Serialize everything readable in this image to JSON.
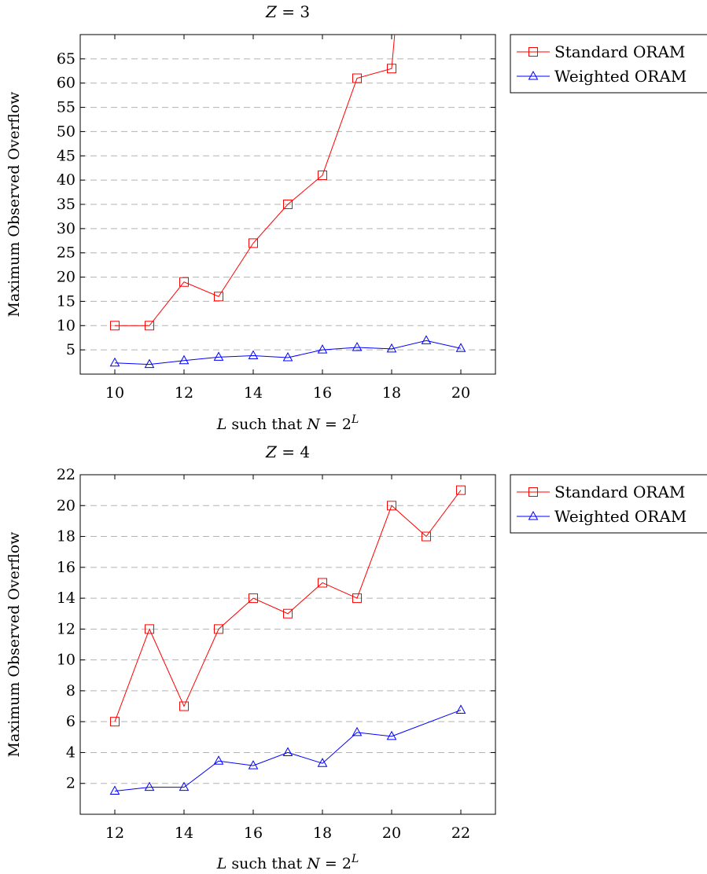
{
  "chart_data": [
    {
      "type": "line",
      "title": "Z = 3",
      "xlabel": "L such that N = 2^L",
      "ylabel": "Maximum Observed Overflow",
      "xlim": [
        9,
        21
      ],
      "ylim": [
        0,
        70
      ],
      "xticks": [
        10,
        12,
        14,
        16,
        18,
        20
      ],
      "yticks": [
        5,
        10,
        15,
        20,
        25,
        30,
        35,
        40,
        45,
        50,
        55,
        60,
        65
      ],
      "grid": "horizontal dashed",
      "legend_position": "outside-right-top",
      "series": [
        {
          "name": "Standard ORAM",
          "color": "#ff0000",
          "marker": "square",
          "x": [
            10,
            11,
            12,
            13,
            14,
            15,
            16,
            17,
            18,
            18.15
          ],
          "y": [
            10,
            10,
            19,
            16,
            27,
            35,
            41,
            61,
            63,
            75
          ],
          "marked": [
            true,
            true,
            true,
            true,
            true,
            true,
            true,
            true,
            true,
            false
          ]
        },
        {
          "name": "Weighted ORAM",
          "color": "#0000ff",
          "marker": "triangle",
          "x": [
            10,
            11,
            12,
            13,
            14,
            15,
            16,
            17,
            18,
            19,
            20
          ],
          "y": [
            2.3,
            2.0,
            2.8,
            3.5,
            3.8,
            3.4,
            5.0,
            5.5,
            5.2,
            6.9,
            5.3
          ],
          "marked": [
            true,
            true,
            true,
            true,
            true,
            true,
            true,
            true,
            true,
            true,
            true
          ]
        }
      ]
    },
    {
      "type": "line",
      "title": "Z = 4",
      "xlabel": "L such that N = 2^L",
      "ylabel": "Maximum Observed Overflow",
      "xlim": [
        11,
        23
      ],
      "ylim": [
        0,
        22
      ],
      "xticks": [
        12,
        14,
        16,
        18,
        20,
        22
      ],
      "yticks": [
        2,
        4,
        6,
        8,
        10,
        12,
        14,
        16,
        18,
        20,
        22
      ],
      "grid": "horizontal dashed",
      "legend_position": "outside-right-top",
      "series": [
        {
          "name": "Standard ORAM",
          "color": "#ff0000",
          "marker": "square",
          "x": [
            12,
            13,
            14,
            15,
            16,
            17,
            18,
            19,
            20,
            21,
            22
          ],
          "y": [
            6,
            12,
            7,
            12,
            14,
            13,
            15,
            14,
            20,
            18,
            21
          ],
          "marked": [
            true,
            true,
            true,
            true,
            true,
            true,
            true,
            true,
            true,
            true,
            true
          ]
        },
        {
          "name": "Weighted ORAM",
          "color": "#0000ff",
          "marker": "triangle",
          "x": [
            12,
            13,
            14,
            15,
            16,
            17,
            18,
            19,
            20,
            22
          ],
          "y": [
            1.5,
            1.75,
            1.75,
            3.45,
            3.15,
            4.0,
            3.3,
            5.3,
            5.05,
            6.75
          ],
          "marked": [
            true,
            true,
            true,
            true,
            true,
            true,
            true,
            true,
            true,
            true
          ]
        }
      ]
    }
  ]
}
